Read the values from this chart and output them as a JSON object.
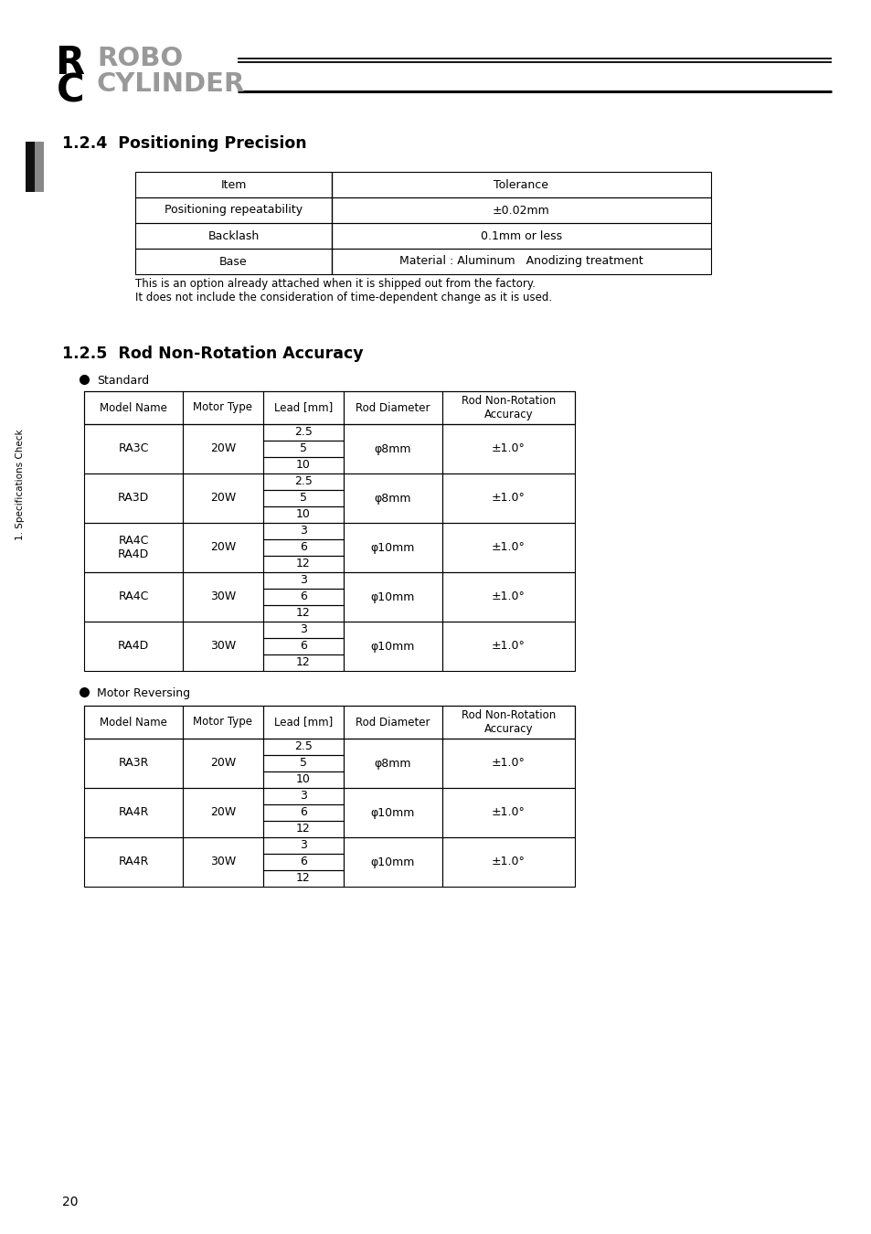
{
  "page_bg": "#ffffff",
  "section124_title": "1.2.4  Positioning Precision",
  "precision_table": {
    "headers": [
      "Item",
      "Tolerance"
    ],
    "rows": [
      [
        "Positioning repeatability",
        "±0.02mm"
      ],
      [
        "Backlash",
        "0.1mm or less"
      ],
      [
        "Base",
        "Material : Aluminum   Anodizing treatment"
      ]
    ]
  },
  "precision_note1": "This is an option already attached when it is shipped out from the factory.",
  "precision_note2": "It does not include the consideration of time-dependent change as it is used.",
  "section125_title": "1.2.5  Rod Non-Rotation Accuracy",
  "standard_label": "Standard",
  "standard_table_headers": [
    "Model Name",
    "Motor Type",
    "Lead [mm]",
    "Rod Diameter",
    "Rod Non-Rotation\nAccuracy"
  ],
  "standard_rows": [
    {
      "model": "RA3C",
      "motor": "20W",
      "leads": [
        "2.5",
        "5",
        "10"
      ],
      "rod": "φ8mm",
      "accuracy": "±1.0°"
    },
    {
      "model": "RA3D",
      "motor": "20W",
      "leads": [
        "2.5",
        "5",
        "10"
      ],
      "rod": "φ8mm",
      "accuracy": "±1.0°"
    },
    {
      "model": "RA4C\nRA4D",
      "motor": "20W",
      "leads": [
        "3",
        "6",
        "12"
      ],
      "rod": "φ10mm",
      "accuracy": "±1.0°"
    },
    {
      "model": "RA4C",
      "motor": "30W",
      "leads": [
        "3",
        "6",
        "12"
      ],
      "rod": "φ10mm",
      "accuracy": "±1.0°"
    },
    {
      "model": "RA4D",
      "motor": "30W",
      "leads": [
        "3",
        "6",
        "12"
      ],
      "rod": "φ10mm",
      "accuracy": "±1.0°"
    }
  ],
  "motor_reversing_label": "Motor Reversing",
  "motor_reversing_rows": [
    {
      "model": "RA3R",
      "motor": "20W",
      "leads": [
        "2.5",
        "5",
        "10"
      ],
      "rod": "φ8mm",
      "accuracy": "±1.0°"
    },
    {
      "model": "RA4R",
      "motor": "20W",
      "leads": [
        "3",
        "6",
        "12"
      ],
      "rod": "φ10mm",
      "accuracy": "±1.0°"
    },
    {
      "model": "RA4R",
      "motor": "30W",
      "leads": [
        "3",
        "6",
        "12"
      ],
      "rod": "φ10mm",
      "accuracy": "±1.0°"
    }
  ],
  "sidebar_text": "1. Specifications Check",
  "page_number": "20",
  "logo_r": "R",
  "logo_c": "C",
  "logo_robo": "ROBO",
  "logo_cylinder": "CYLINDER"
}
